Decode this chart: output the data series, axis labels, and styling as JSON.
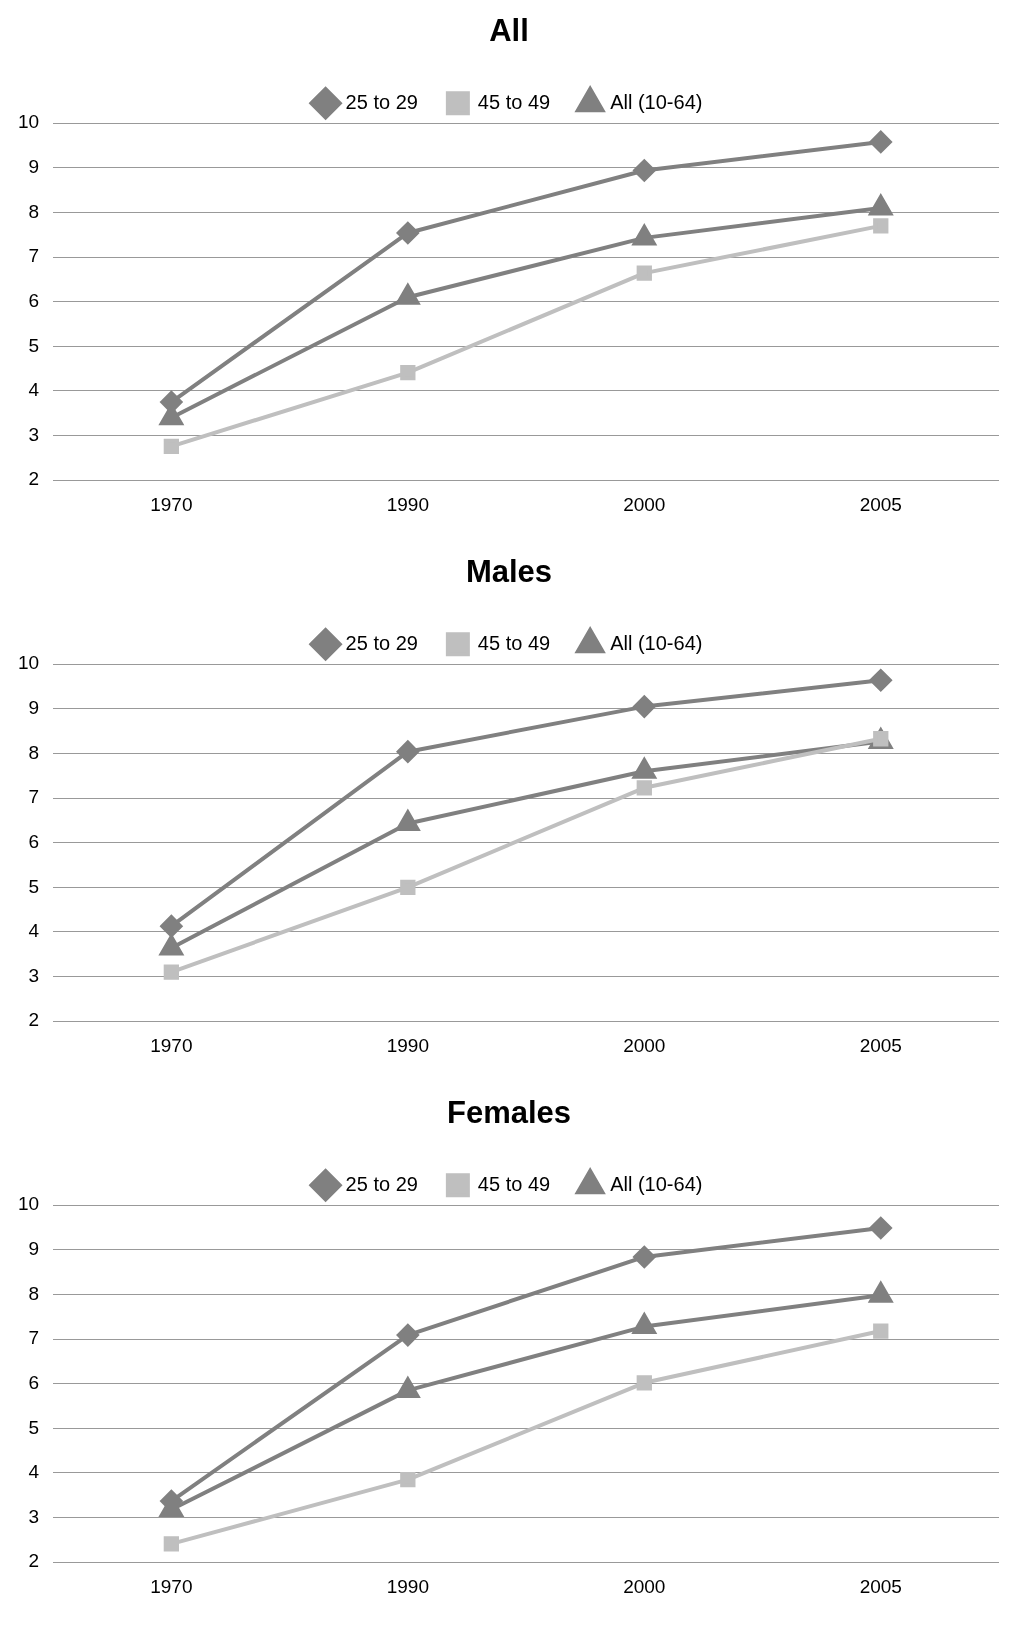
{
  "chart_data": [
    {
      "type": "line",
      "title": "All",
      "categories": [
        "1970",
        "1990",
        "2000",
        "2005"
      ],
      "ylim": [
        2,
        10
      ],
      "yticks": [
        2,
        3,
        4,
        5,
        6,
        7,
        8,
        9,
        10
      ],
      "grid": "y",
      "legend": "top",
      "series": [
        {
          "name": "25 to 29",
          "color": "#808080",
          "marker": "diamond",
          "values": [
            3.75,
            7.54,
            8.94,
            9.58
          ]
        },
        {
          "name": "45 to 49",
          "color": "#bfbfbf",
          "marker": "square",
          "values": [
            2.76,
            4.41,
            6.64,
            7.7
          ]
        },
        {
          "name": "All (10-64)",
          "color": "#808080",
          "marker": "triangle",
          "values": [
            3.4,
            6.1,
            7.43,
            8.1
          ]
        }
      ]
    },
    {
      "type": "line",
      "title": "Males",
      "categories": [
        "1970",
        "1990",
        "2000",
        "2005"
      ],
      "ylim": [
        2,
        10
      ],
      "yticks": [
        2,
        3,
        4,
        5,
        6,
        7,
        8,
        9,
        10
      ],
      "grid": "y",
      "legend": "top",
      "series": [
        {
          "name": "25 to 29",
          "color": "#808080",
          "marker": "diamond",
          "values": [
            4.13,
            8.04,
            9.05,
            9.64
          ]
        },
        {
          "name": "45 to 49",
          "color": "#bfbfbf",
          "marker": "square",
          "values": [
            3.1,
            5.0,
            7.23,
            8.33
          ]
        },
        {
          "name": "All (10-64)",
          "color": "#808080",
          "marker": "triangle",
          "values": [
            3.64,
            6.43,
            7.6,
            8.27
          ]
        }
      ]
    },
    {
      "type": "line",
      "title": "Females",
      "categories": [
        "1970",
        "1990",
        "2000",
        "2005"
      ],
      "ylim": [
        2,
        10
      ],
      "yticks": [
        2,
        3,
        4,
        5,
        6,
        7,
        8,
        9,
        10
      ],
      "grid": "y",
      "legend": "top",
      "series": [
        {
          "name": "25 to 29",
          "color": "#808080",
          "marker": "diamond",
          "values": [
            3.37,
            7.09,
            8.84,
            9.49
          ]
        },
        {
          "name": "45 to 49",
          "color": "#bfbfbf",
          "marker": "square",
          "values": [
            2.41,
            3.85,
            6.02,
            7.18
          ]
        },
        {
          "name": "All (10-64)",
          "color": "#808080",
          "marker": "triangle",
          "values": [
            3.18,
            5.85,
            7.28,
            7.98
          ]
        }
      ]
    }
  ]
}
